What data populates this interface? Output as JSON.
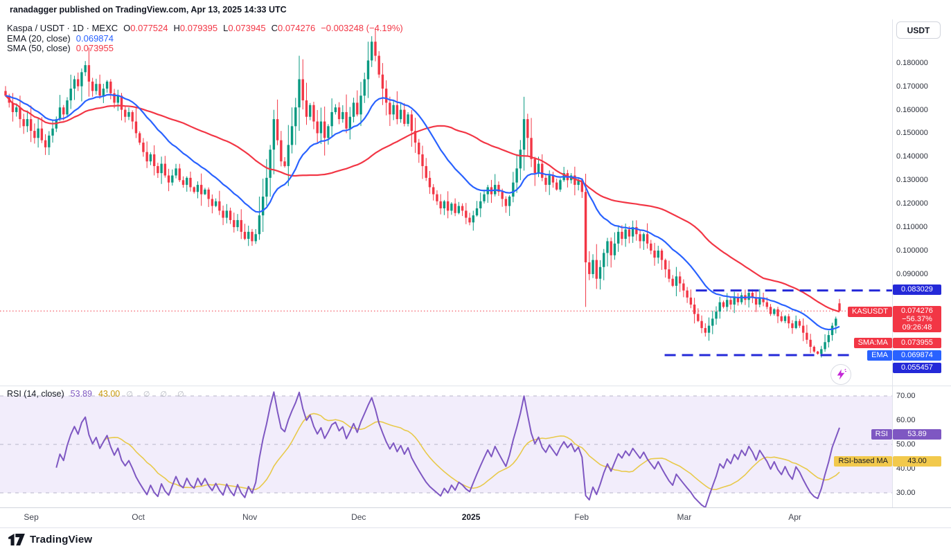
{
  "header": {
    "publish_line": "ranadagger published on TradingView.com, Apr 13, 2025 14:33 UTC"
  },
  "legend": {
    "title": "Kaspa / USDT · 1D · MEXC",
    "ohlc": [
      {
        "k": "O",
        "v": "0.077524"
      },
      {
        "k": "H",
        "v": "0.079395"
      },
      {
        "k": "L",
        "v": "0.073945"
      },
      {
        "k": "C",
        "v": "0.074276"
      }
    ],
    "change": "−0.003248 (−4.19%)",
    "ema_label": "EMA (20, close)",
    "ema_value": "0.069874",
    "sma_label": "SMA (50, close)",
    "sma_value": "0.073955"
  },
  "axis": {
    "currency_button": "USDT",
    "price_ticks": [
      "0.180000",
      "0.170000",
      "0.160000",
      "0.150000",
      "0.140000",
      "0.130000",
      "0.120000",
      "0.110000",
      "0.100000",
      "0.090000"
    ],
    "badges": {
      "upper_level": "0.083029",
      "symbol_tag": "KASUSDT",
      "last_price": "0.074276",
      "change_pct": "−56.37%",
      "countdown": "09:26:48",
      "sma_tag": "SMA:MA",
      "sma_value": "0.073955",
      "ema_tag": "EMA",
      "ema_value": "0.069874",
      "lower_level": "0.055457"
    }
  },
  "rsi": {
    "legend_label": "RSI (14, close)",
    "rsi_value": "53.89",
    "ma_value": "43.00",
    "extra_icons": "∅ ∅ ∅ ∅",
    "ticks": [
      "70.00",
      "60.00",
      "50.00",
      "40.00",
      "30.00"
    ],
    "badge_rsi_tag": "RSI",
    "badge_rsi_value": "53.89",
    "badge_ma_tag": "RSI-based MA",
    "badge_ma_value": "43.00"
  },
  "time_axis": {
    "labels": [
      {
        "text": "Sep",
        "x": 0.035,
        "emphasis": false
      },
      {
        "text": "Oct",
        "x": 0.155,
        "emphasis": false
      },
      {
        "text": "Nov",
        "x": 0.28,
        "emphasis": false
      },
      {
        "text": "Dec",
        "x": 0.402,
        "emphasis": false
      },
      {
        "text": "2025",
        "x": 0.528,
        "emphasis": true
      },
      {
        "text": "Feb",
        "x": 0.652,
        "emphasis": false
      },
      {
        "text": "Mar",
        "x": 0.767,
        "emphasis": false
      },
      {
        "text": "Apr",
        "x": 0.891,
        "emphasis": false
      }
    ]
  },
  "footer": {
    "brand": "TradingView"
  },
  "colors": {
    "up": "#089981",
    "down": "#f23645",
    "ema": "#2962ff",
    "sma": "#f23645",
    "level_blue": "#2429d8",
    "price_line_red": "#f23645",
    "rsi_purple": "#7e57c2",
    "rsi_ma_yellow": "#e8c94a",
    "rsi_band_bg": "#f2edfb",
    "grid_dash": "#b7b5c8",
    "text": "#131722",
    "border": "#e0e3eb"
  },
  "chart_data": [
    {
      "type": "candlestick",
      "symbol": "KASUSDT",
      "exchange": "MEXC",
      "timeframe": "1D",
      "title": "Kaspa / USDT · 1D · MEXC",
      "ylim": [
        0.0425,
        0.1985
      ],
      "x_range": [
        "late Aug 2024",
        "Apr 13 2025"
      ],
      "closes": [
        0.166,
        0.163,
        0.159,
        0.161,
        0.156,
        0.153,
        0.156,
        0.151,
        0.148,
        0.152,
        0.147,
        0.144,
        0.149,
        0.152,
        0.156,
        0.161,
        0.158,
        0.164,
        0.169,
        0.173,
        0.17,
        0.176,
        0.179,
        0.172,
        0.168,
        0.171,
        0.166,
        0.169,
        0.172,
        0.167,
        0.163,
        0.166,
        0.16,
        0.157,
        0.159,
        0.155,
        0.15,
        0.146,
        0.142,
        0.138,
        0.141,
        0.136,
        0.133,
        0.137,
        0.132,
        0.129,
        0.132,
        0.135,
        0.13,
        0.128,
        0.131,
        0.127,
        0.125,
        0.128,
        0.124,
        0.126,
        0.122,
        0.119,
        0.121,
        0.117,
        0.114,
        0.117,
        0.113,
        0.11,
        0.113,
        0.108,
        0.105,
        0.108,
        0.104,
        0.107,
        0.115,
        0.123,
        0.131,
        0.143,
        0.156,
        0.147,
        0.138,
        0.136,
        0.145,
        0.153,
        0.161,
        0.173,
        0.164,
        0.157,
        0.162,
        0.155,
        0.15,
        0.155,
        0.148,
        0.153,
        0.159,
        0.161,
        0.156,
        0.159,
        0.152,
        0.157,
        0.163,
        0.158,
        0.166,
        0.173,
        0.181,
        0.189,
        0.183,
        0.175,
        0.169,
        0.163,
        0.158,
        0.162,
        0.156,
        0.16,
        0.154,
        0.158,
        0.151,
        0.146,
        0.141,
        0.136,
        0.131,
        0.127,
        0.124,
        0.121,
        0.118,
        0.121,
        0.117,
        0.12,
        0.116,
        0.119,
        0.117,
        0.114,
        0.112,
        0.115,
        0.118,
        0.121,
        0.124,
        0.127,
        0.124,
        0.128,
        0.125,
        0.122,
        0.119,
        0.123,
        0.129,
        0.135,
        0.143,
        0.156,
        0.148,
        0.139,
        0.133,
        0.137,
        0.131,
        0.128,
        0.132,
        0.129,
        0.126,
        0.13,
        0.133,
        0.13,
        0.132,
        0.128,
        0.13,
        0.125,
        0.095,
        0.09,
        0.096,
        0.088,
        0.093,
        0.099,
        0.104,
        0.098,
        0.103,
        0.108,
        0.105,
        0.109,
        0.106,
        0.11,
        0.107,
        0.104,
        0.107,
        0.103,
        0.1,
        0.097,
        0.1,
        0.096,
        0.092,
        0.088,
        0.085,
        0.089,
        0.086,
        0.083,
        0.08,
        0.077,
        0.073,
        0.07,
        0.067,
        0.065,
        0.068,
        0.071,
        0.074,
        0.078,
        0.076,
        0.079,
        0.077,
        0.08,
        0.078,
        0.081,
        0.079,
        0.082,
        0.08,
        0.077,
        0.08,
        0.078,
        0.076,
        0.073,
        0.075,
        0.072,
        0.07,
        0.072,
        0.069,
        0.067,
        0.07,
        0.068,
        0.065,
        0.062,
        0.059,
        0.057,
        0.056,
        0.058,
        0.061,
        0.064,
        0.068,
        0.071,
        0.074276
      ],
      "last_candle": {
        "open": 0.077524,
        "high": 0.079395,
        "low": 0.073945,
        "close": 0.074276
      },
      "change_abs": -0.003248,
      "change_pct": -4.19,
      "overlays": [
        {
          "name": "EMA (20, close)",
          "kind": "ema",
          "period": 20,
          "last": 0.069874,
          "color": "#2962ff"
        },
        {
          "name": "SMA (50, close)",
          "kind": "sma",
          "period": 50,
          "last": 0.073955,
          "color": "#f23645"
        }
      ],
      "levels": [
        {
          "value": 0.083029,
          "style": "dashed",
          "color": "#2429d8",
          "x_start": 0.78,
          "x_end": 1.0,
          "width": 3
        },
        {
          "value": 0.055457,
          "style": "dashed",
          "color": "#2429d8",
          "x_start": 0.745,
          "x_end": 0.955,
          "width": 3
        },
        {
          "value": 0.074276,
          "style": "dotted",
          "color": "#f23645",
          "x_start": 0.0,
          "x_end": 1.0,
          "width": 1
        }
      ]
    },
    {
      "type": "line",
      "name": "RSI (14, close)",
      "period": 14,
      "ma_period": 14,
      "ylim": [
        24,
        74
      ],
      "bands": [
        70,
        50,
        30
      ],
      "last_rsi": 53.89,
      "last_ma": 43.0
    }
  ]
}
